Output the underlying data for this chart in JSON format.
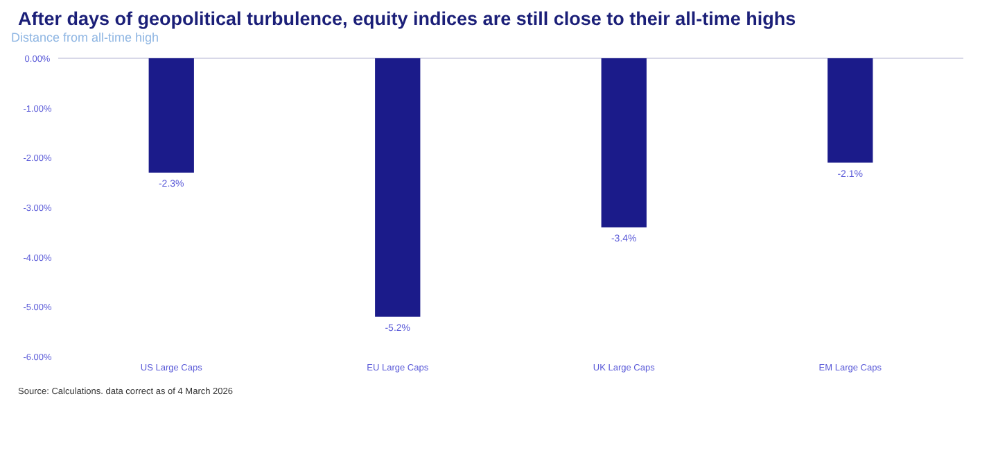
{
  "chart_data": {
    "type": "bar",
    "title": "After days of geopolitical turbulence, equity indices are still close to their all-time highs",
    "subtitle": "Distance from all-time high",
    "categories": [
      "US Large Caps",
      "EU Large Caps",
      "UK Large Caps",
      "EM Large Caps"
    ],
    "values": [
      -2.3,
      -5.2,
      -3.4,
      -2.1
    ],
    "color": "#1b1b8a",
    "value_labels": [
      "-2.3%",
      "-5.2%",
      "-3.4%",
      "-2.1%"
    ],
    "ylim": [
      -6,
      0
    ],
    "yticks": [
      {
        "value": 0,
        "label": "0.00%"
      },
      {
        "value": -1,
        "label": "-1.00%"
      },
      {
        "value": -2,
        "label": "-2.00%"
      },
      {
        "value": -3,
        "label": "-3.00%"
      },
      {
        "value": -4,
        "label": "-4.00%"
      },
      {
        "value": -5,
        "label": "-5.00%"
      },
      {
        "value": -6,
        "label": "-6.00%"
      }
    ],
    "grid": false,
    "annotations": [
      "Source: Calculations. data correct as of 4 March 2026"
    ]
  }
}
